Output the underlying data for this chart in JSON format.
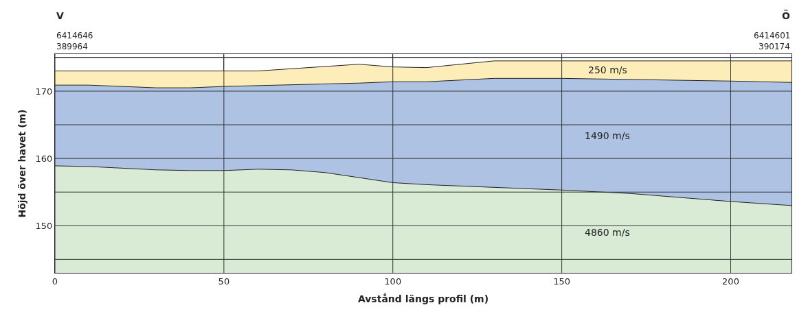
{
  "chart_data": {
    "type": "area",
    "xlabel": "Avstånd längs profil (m)",
    "ylabel": "Höjd över havet (m)",
    "xlim": [
      0,
      218
    ],
    "ylim": [
      143,
      175.5
    ],
    "xticks": [
      0,
      50,
      100,
      150,
      200
    ],
    "yticks": [
      {
        "value": 145,
        "label": null
      },
      150,
      {
        "value": 155,
        "label": null
      },
      160,
      {
        "value": 165,
        "label": null
      },
      170,
      {
        "value": 175,
        "label": null
      }
    ],
    "grid": true,
    "series": [
      {
        "name": "250 m/s",
        "color": "#fdeeb9",
        "x": [
          0,
          60,
          90,
          100,
          110,
          130,
          218
        ],
        "values": [
          173,
          173,
          174,
          173.6,
          173.5,
          174.5,
          174.5
        ]
      },
      {
        "name": "1490 m/s",
        "color": "#aec3e4",
        "x": [
          0,
          10,
          30,
          40,
          50,
          90,
          100,
          110,
          130,
          150,
          200,
          218
        ],
        "values": [
          170.9,
          170.9,
          170.5,
          170.5,
          170.7,
          171.2,
          171.4,
          171.4,
          171.9,
          171.9,
          171.5,
          171.3
        ]
      },
      {
        "name": "4860 m/s",
        "color": "#d9ead5",
        "x": [
          0,
          10,
          30,
          40,
          50,
          60,
          70,
          80,
          100,
          110,
          150,
          170,
          200,
          218
        ],
        "values": [
          158.9,
          158.8,
          158.3,
          158.2,
          158.2,
          158.4,
          158.3,
          157.9,
          156.4,
          156.1,
          155.3,
          154.8,
          153.6,
          153
        ]
      }
    ],
    "annotations": [
      "V",
      "Ö",
      "6414646",
      "6414601",
      "389964",
      "390174"
    ]
  }
}
